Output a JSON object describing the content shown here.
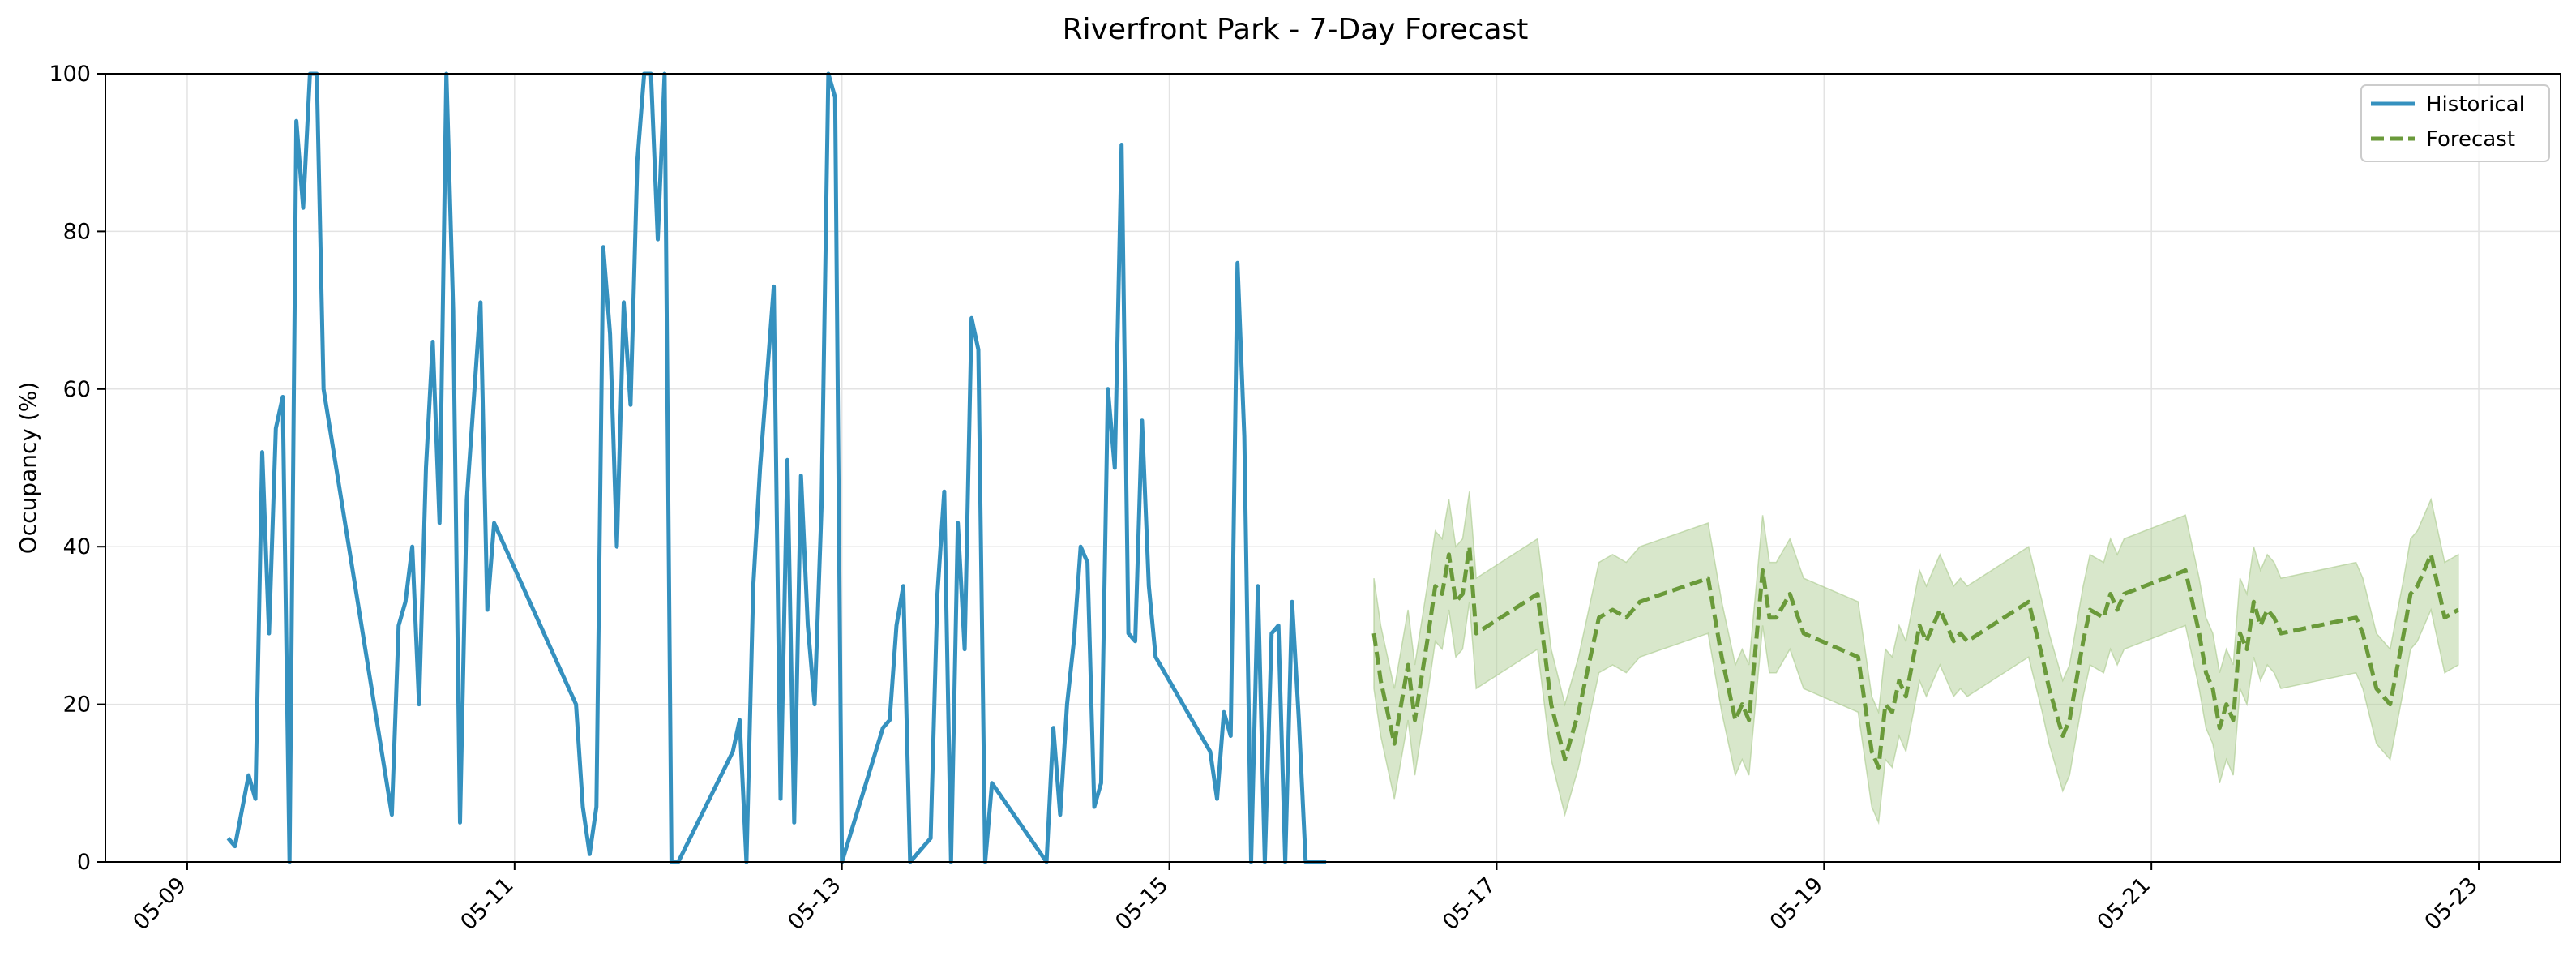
{
  "chart_data": {
    "type": "line",
    "title": "Riverfront Park - 7-Day Forecast",
    "xlabel": "",
    "ylabel": "Occupancy (%)",
    "xlim": [
      "2025-05-08T12:00",
      "2025-05-23T12:00"
    ],
    "ylim": [
      0,
      100
    ],
    "grid": true,
    "legend": "top-right",
    "x_ticks": [
      {
        "date": "2025-05-09",
        "label": "05-09"
      },
      {
        "date": "2025-05-11",
        "label": "05-11"
      },
      {
        "date": "2025-05-13",
        "label": "05-13"
      },
      {
        "date": "2025-05-15",
        "label": "05-15"
      },
      {
        "date": "2025-05-17",
        "label": "05-17"
      },
      {
        "date": "2025-05-19",
        "label": "05-19"
      },
      {
        "date": "2025-05-21",
        "label": "05-21"
      },
      {
        "date": "2025-05-23",
        "label": "05-23"
      }
    ],
    "y_ticks": [
      0,
      20,
      40,
      60,
      80,
      100
    ],
    "series": [
      {
        "name": "Historical",
        "color": "#3591bf",
        "style": "solid",
        "points": [
          [
            "2025-05-09T06:00",
            3
          ],
          [
            "2025-05-09T07:00",
            2
          ],
          [
            "2025-05-09T09:00",
            11
          ],
          [
            "2025-05-09T10:00",
            8
          ],
          [
            "2025-05-09T11:00",
            52
          ],
          [
            "2025-05-09T12:00",
            29
          ],
          [
            "2025-05-09T13:00",
            55
          ],
          [
            "2025-05-09T14:00",
            59
          ],
          [
            "2025-05-09T15:00",
            0
          ],
          [
            "2025-05-09T16:00",
            94
          ],
          [
            "2025-05-09T17:00",
            83
          ],
          [
            "2025-05-09T18:00",
            100
          ],
          [
            "2025-05-09T19:00",
            100
          ],
          [
            "2025-05-09T20:00",
            60
          ],
          [
            "2025-05-10T06:00",
            6
          ],
          [
            "2025-05-10T07:00",
            30
          ],
          [
            "2025-05-10T08:00",
            33
          ],
          [
            "2025-05-10T09:00",
            40
          ],
          [
            "2025-05-10T10:00",
            20
          ],
          [
            "2025-05-10T11:00",
            50
          ],
          [
            "2025-05-10T12:00",
            66
          ],
          [
            "2025-05-10T13:00",
            43
          ],
          [
            "2025-05-10T14:00",
            100
          ],
          [
            "2025-05-10T15:00",
            70
          ],
          [
            "2025-05-10T16:00",
            5
          ],
          [
            "2025-05-10T17:00",
            46
          ],
          [
            "2025-05-10T19:00",
            71
          ],
          [
            "2025-05-10T20:00",
            32
          ],
          [
            "2025-05-10T21:00",
            43
          ],
          [
            "2025-05-11T09:00",
            20
          ],
          [
            "2025-05-11T10:00",
            7
          ],
          [
            "2025-05-11T11:00",
            1
          ],
          [
            "2025-05-11T12:00",
            7
          ],
          [
            "2025-05-11T13:00",
            78
          ],
          [
            "2025-05-11T14:00",
            67
          ],
          [
            "2025-05-11T15:00",
            40
          ],
          [
            "2025-05-11T16:00",
            71
          ],
          [
            "2025-05-11T17:00",
            58
          ],
          [
            "2025-05-11T18:00",
            89
          ],
          [
            "2025-05-11T19:00",
            100
          ],
          [
            "2025-05-11T20:00",
            100
          ],
          [
            "2025-05-11T21:00",
            79
          ],
          [
            "2025-05-11T22:00",
            100
          ],
          [
            "2025-05-11T23:00",
            0
          ],
          [
            "2025-05-12T00:00",
            0
          ],
          [
            "2025-05-12T08:00",
            14
          ],
          [
            "2025-05-12T09:00",
            18
          ],
          [
            "2025-05-12T10:00",
            0
          ],
          [
            "2025-05-12T11:00",
            35
          ],
          [
            "2025-05-12T12:00",
            50
          ],
          [
            "2025-05-12T14:00",
            73
          ],
          [
            "2025-05-12T15:00",
            8
          ],
          [
            "2025-05-12T16:00",
            51
          ],
          [
            "2025-05-12T17:00",
            5
          ],
          [
            "2025-05-12T18:00",
            49
          ],
          [
            "2025-05-12T19:00",
            30
          ],
          [
            "2025-05-12T20:00",
            20
          ],
          [
            "2025-05-12T21:00",
            45
          ],
          [
            "2025-05-12T22:00",
            100
          ],
          [
            "2025-05-12T23:00",
            97
          ],
          [
            "2025-05-13T00:00",
            0
          ],
          [
            "2025-05-13T06:00",
            17
          ],
          [
            "2025-05-13T07:00",
            18
          ],
          [
            "2025-05-13T08:00",
            30
          ],
          [
            "2025-05-13T09:00",
            35
          ],
          [
            "2025-05-13T10:00",
            0
          ],
          [
            "2025-05-13T13:00",
            3
          ],
          [
            "2025-05-13T14:00",
            34
          ],
          [
            "2025-05-13T15:00",
            47
          ],
          [
            "2025-05-13T16:00",
            0
          ],
          [
            "2025-05-13T17:00",
            43
          ],
          [
            "2025-05-13T18:00",
            27
          ],
          [
            "2025-05-13T19:00",
            69
          ],
          [
            "2025-05-13T20:00",
            65
          ],
          [
            "2025-05-13T21:00",
            0
          ],
          [
            "2025-05-13T22:00",
            10
          ],
          [
            "2025-05-14T06:00",
            0
          ],
          [
            "2025-05-14T07:00",
            17
          ],
          [
            "2025-05-14T08:00",
            6
          ],
          [
            "2025-05-14T09:00",
            20
          ],
          [
            "2025-05-14T10:00",
            28
          ],
          [
            "2025-05-14T11:00",
            40
          ],
          [
            "2025-05-14T12:00",
            38
          ],
          [
            "2025-05-14T13:00",
            7
          ],
          [
            "2025-05-14T14:00",
            10
          ],
          [
            "2025-05-14T15:00",
            60
          ],
          [
            "2025-05-14T16:00",
            50
          ],
          [
            "2025-05-14T17:00",
            91
          ],
          [
            "2025-05-14T18:00",
            29
          ],
          [
            "2025-05-14T19:00",
            28
          ],
          [
            "2025-05-14T20:00",
            56
          ],
          [
            "2025-05-14T21:00",
            35
          ],
          [
            "2025-05-14T22:00",
            26
          ],
          [
            "2025-05-15T06:00",
            14
          ],
          [
            "2025-05-15T07:00",
            8
          ],
          [
            "2025-05-15T08:00",
            19
          ],
          [
            "2025-05-15T09:00",
            16
          ],
          [
            "2025-05-15T10:00",
            76
          ],
          [
            "2025-05-15T11:00",
            54
          ],
          [
            "2025-05-15T12:00",
            0
          ],
          [
            "2025-05-15T13:00",
            35
          ],
          [
            "2025-05-15T14:00",
            0
          ],
          [
            "2025-05-15T15:00",
            29
          ],
          [
            "2025-05-15T16:00",
            30
          ],
          [
            "2025-05-15T17:00",
            0
          ],
          [
            "2025-05-15T18:00",
            33
          ],
          [
            "2025-05-15T19:00",
            18
          ],
          [
            "2025-05-15T20:00",
            0
          ],
          [
            "2025-05-15T23:00",
            0
          ]
        ]
      },
      {
        "name": "Forecast",
        "color": "#6a9a3a",
        "style": "dashed",
        "band_color": "#a9c98b",
        "points": [
          [
            "2025-05-16T06:00",
            29,
            36,
            22
          ],
          [
            "2025-05-16T07:00",
            23,
            30,
            16
          ],
          [
            "2025-05-16T09:00",
            15,
            22,
            8
          ],
          [
            "2025-05-16T11:00",
            25,
            32,
            18
          ],
          [
            "2025-05-16T12:00",
            18,
            25,
            11
          ],
          [
            "2025-05-16T14:00",
            29,
            36,
            22
          ],
          [
            "2025-05-16T15:00",
            35,
            42,
            28
          ],
          [
            "2025-05-16T16:00",
            34,
            41,
            27
          ],
          [
            "2025-05-16T17:00",
            39,
            46,
            32
          ],
          [
            "2025-05-16T18:00",
            33,
            40,
            26
          ],
          [
            "2025-05-16T19:00",
            34,
            41,
            27
          ],
          [
            "2025-05-16T20:00",
            40,
            47,
            33
          ],
          [
            "2025-05-16T21:00",
            29,
            36,
            22
          ],
          [
            "2025-05-17T06:00",
            34,
            41,
            27
          ],
          [
            "2025-05-17T08:00",
            20,
            27,
            13
          ],
          [
            "2025-05-17T10:00",
            13,
            20,
            6
          ],
          [
            "2025-05-17T12:00",
            19,
            26,
            12
          ],
          [
            "2025-05-17T14:00",
            27,
            34,
            20
          ],
          [
            "2025-05-17T15:00",
            31,
            38,
            24
          ],
          [
            "2025-05-17T17:00",
            32,
            39,
            25
          ],
          [
            "2025-05-17T19:00",
            31,
            38,
            24
          ],
          [
            "2025-05-17T21:00",
            33,
            40,
            26
          ],
          [
            "2025-05-18T07:00",
            36,
            43,
            29
          ],
          [
            "2025-05-18T09:00",
            26,
            33,
            19
          ],
          [
            "2025-05-18T11:00",
            18,
            25,
            11
          ],
          [
            "2025-05-18T12:00",
            20,
            27,
            13
          ],
          [
            "2025-05-18T13:00",
            18,
            25,
            11
          ],
          [
            "2025-05-18T15:00",
            37,
            44,
            30
          ],
          [
            "2025-05-18T16:00",
            31,
            38,
            24
          ],
          [
            "2025-05-18T17:00",
            31,
            38,
            24
          ],
          [
            "2025-05-18T19:00",
            34,
            41,
            27
          ],
          [
            "2025-05-18T21:00",
            29,
            36,
            22
          ],
          [
            "2025-05-19T05:00",
            26,
            33,
            19
          ],
          [
            "2025-05-19T07:00",
            14,
            21,
            7
          ],
          [
            "2025-05-19T08:00",
            12,
            19,
            5
          ],
          [
            "2025-05-19T09:00",
            20,
            27,
            13
          ],
          [
            "2025-05-19T10:00",
            19,
            26,
            12
          ],
          [
            "2025-05-19T11:00",
            23,
            30,
            16
          ],
          [
            "2025-05-19T12:00",
            21,
            28,
            14
          ],
          [
            "2025-05-19T14:00",
            30,
            37,
            23
          ],
          [
            "2025-05-19T15:00",
            28,
            35,
            21
          ],
          [
            "2025-05-19T17:00",
            32,
            39,
            25
          ],
          [
            "2025-05-19T19:00",
            28,
            35,
            21
          ],
          [
            "2025-05-19T20:00",
            29,
            36,
            22
          ],
          [
            "2025-05-19T21:00",
            28,
            35,
            21
          ],
          [
            "2025-05-20T06:00",
            33,
            40,
            26
          ],
          [
            "2025-05-20T08:00",
            26,
            33,
            19
          ],
          [
            "2025-05-20T09:00",
            22,
            29,
            15
          ],
          [
            "2025-05-20T11:00",
            16,
            23,
            9
          ],
          [
            "2025-05-20T12:00",
            18,
            25,
            11
          ],
          [
            "2025-05-20T14:00",
            28,
            35,
            21
          ],
          [
            "2025-05-20T15:00",
            32,
            39,
            25
          ],
          [
            "2025-05-20T17:00",
            31,
            38,
            24
          ],
          [
            "2025-05-20T18:00",
            34,
            41,
            27
          ],
          [
            "2025-05-20T19:00",
            32,
            39,
            25
          ],
          [
            "2025-05-20T20:00",
            34,
            41,
            27
          ],
          [
            "2025-05-21T05:00",
            37,
            44,
            30
          ],
          [
            "2025-05-21T07:00",
            29,
            36,
            22
          ],
          [
            "2025-05-21T08:00",
            24,
            31,
            17
          ],
          [
            "2025-05-21T09:00",
            22,
            29,
            15
          ],
          [
            "2025-05-21T10:00",
            17,
            24,
            10
          ],
          [
            "2025-05-21T11:00",
            20,
            27,
            13
          ],
          [
            "2025-05-21T12:00",
            18,
            25,
            11
          ],
          [
            "2025-05-21T13:00",
            29,
            36,
            22
          ],
          [
            "2025-05-21T14:00",
            27,
            34,
            20
          ],
          [
            "2025-05-21T15:00",
            33,
            40,
            26
          ],
          [
            "2025-05-21T16:00",
            30,
            37,
            23
          ],
          [
            "2025-05-21T17:00",
            32,
            39,
            25
          ],
          [
            "2025-05-21T18:00",
            31,
            38,
            24
          ],
          [
            "2025-05-21T19:00",
            29,
            36,
            22
          ],
          [
            "2025-05-22T06:00",
            31,
            38,
            24
          ],
          [
            "2025-05-22T07:00",
            29,
            36,
            22
          ],
          [
            "2025-05-22T09:00",
            22,
            29,
            15
          ],
          [
            "2025-05-22T11:00",
            20,
            27,
            13
          ],
          [
            "2025-05-22T13:00",
            29,
            36,
            22
          ],
          [
            "2025-05-22T14:00",
            34,
            41,
            27
          ],
          [
            "2025-05-22T15:00",
            35,
            42,
            28
          ],
          [
            "2025-05-22T17:00",
            39,
            46,
            32
          ],
          [
            "2025-05-22T19:00",
            31,
            38,
            24
          ],
          [
            "2025-05-22T21:00",
            32,
            39,
            25
          ]
        ]
      }
    ]
  }
}
